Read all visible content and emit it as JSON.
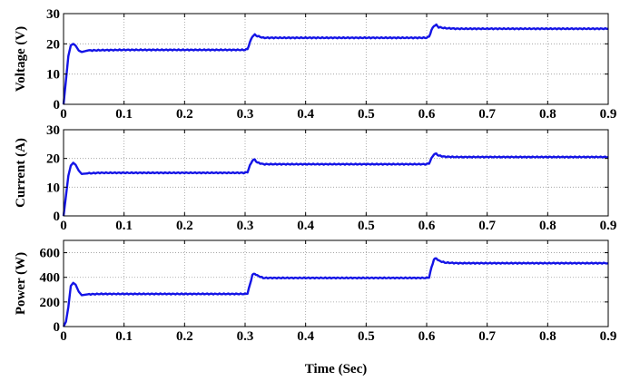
{
  "chart_data": [
    {
      "type": "line",
      "ylabel": "Voltage (V)",
      "xlabel": "",
      "xlim": [
        0,
        0.9
      ],
      "ylim": [
        0,
        30
      ],
      "xticks": [
        "0",
        "0.1",
        "0.2",
        "0.3",
        "0.4",
        "0.5",
        "0.6",
        "0.7",
        "0.8",
        "0.9"
      ],
      "yticks": [
        "0",
        "10",
        "20",
        "30"
      ],
      "grid": true,
      "color": "#1414e6",
      "series": [
        {
          "x": [
            0,
            0.004,
            0.008,
            0.012,
            0.016,
            0.02,
            0.025,
            0.03,
            0.04,
            0.06,
            0.1,
            0.15,
            0.2,
            0.25,
            0.28,
            0.3,
            0.304,
            0.308,
            0.312,
            0.316,
            0.32,
            0.33,
            0.35,
            0.4,
            0.45,
            0.5,
            0.55,
            0.58,
            0.6,
            0.604,
            0.608,
            0.612,
            0.616,
            0.62,
            0.63,
            0.65,
            0.7,
            0.75,
            0.8,
            0.85,
            0.9
          ],
          "y": [
            0,
            8,
            16,
            19.5,
            20,
            19.4,
            17.8,
            17.3,
            17.8,
            17.9,
            18,
            18,
            18,
            18,
            18,
            18,
            18.3,
            20.5,
            22.5,
            23,
            22.6,
            22,
            22,
            22,
            22,
            22,
            22,
            22,
            22,
            22.4,
            24.5,
            26,
            26.2,
            25.5,
            25.2,
            25,
            25,
            25,
            25,
            25,
            25
          ]
        }
      ]
    },
    {
      "type": "line",
      "ylabel": "Current (A)",
      "xlabel": "",
      "xlim": [
        0,
        0.9
      ],
      "ylim": [
        0,
        30
      ],
      "xticks": [
        "0",
        "0.1",
        "0.2",
        "0.3",
        "0.4",
        "0.5",
        "0.6",
        "0.7",
        "0.8",
        "0.9"
      ],
      "yticks": [
        "0",
        "10",
        "20",
        "30"
      ],
      "grid": true,
      "color": "#1414e6",
      "series": [
        {
          "x": [
            0,
            0.004,
            0.008,
            0.012,
            0.016,
            0.02,
            0.025,
            0.03,
            0.04,
            0.06,
            0.1,
            0.15,
            0.2,
            0.25,
            0.28,
            0.3,
            0.304,
            0.308,
            0.312,
            0.316,
            0.32,
            0.33,
            0.35,
            0.4,
            0.45,
            0.5,
            0.55,
            0.58,
            0.6,
            0.604,
            0.608,
            0.612,
            0.616,
            0.62,
            0.63,
            0.65,
            0.7,
            0.75,
            0.8,
            0.85,
            0.9
          ],
          "y": [
            0,
            7,
            14,
            17.5,
            18.5,
            17.8,
            15.8,
            14.6,
            14.8,
            15,
            15,
            15,
            15,
            15,
            15,
            15,
            15.3,
            17.5,
            19.3,
            19.6,
            18.6,
            18,
            18,
            18,
            18,
            18,
            18,
            18,
            18,
            18.3,
            20,
            21.5,
            21.6,
            21,
            20.6,
            20.5,
            20.5,
            20.5,
            20.5,
            20.5,
            20.5
          ]
        }
      ]
    },
    {
      "type": "line",
      "ylabel": "Power (W)",
      "xlabel": "Time (Sec)",
      "xlim": [
        0,
        0.9
      ],
      "ylim": [
        0,
        700
      ],
      "xticks": [
        "0",
        "0.1",
        "0.2",
        "0.3",
        "0.4",
        "0.5",
        "0.6",
        "0.7",
        "0.8",
        "0.9"
      ],
      "yticks": [
        "0",
        "200",
        "400",
        "600"
      ],
      "grid": true,
      "color": "#1414e6",
      "series": [
        {
          "x": [
            0,
            0.004,
            0.008,
            0.012,
            0.016,
            0.02,
            0.025,
            0.03,
            0.04,
            0.06,
            0.1,
            0.15,
            0.2,
            0.25,
            0.28,
            0.3,
            0.304,
            0.308,
            0.312,
            0.316,
            0.32,
            0.33,
            0.35,
            0.4,
            0.45,
            0.5,
            0.55,
            0.58,
            0.6,
            0.604,
            0.608,
            0.612,
            0.616,
            0.62,
            0.63,
            0.65,
            0.7,
            0.75,
            0.8,
            0.85,
            0.9
          ],
          "y": [
            0,
            40,
            160,
            330,
            355,
            340,
            285,
            255,
            262,
            265,
            265,
            265,
            265,
            265,
            265,
            265,
            270,
            340,
            420,
            430,
            415,
            395,
            395,
            395,
            395,
            395,
            395,
            395,
            395,
            400,
            480,
            545,
            555,
            535,
            520,
            515,
            515,
            515,
            515,
            515,
            515
          ]
        }
      ]
    }
  ]
}
